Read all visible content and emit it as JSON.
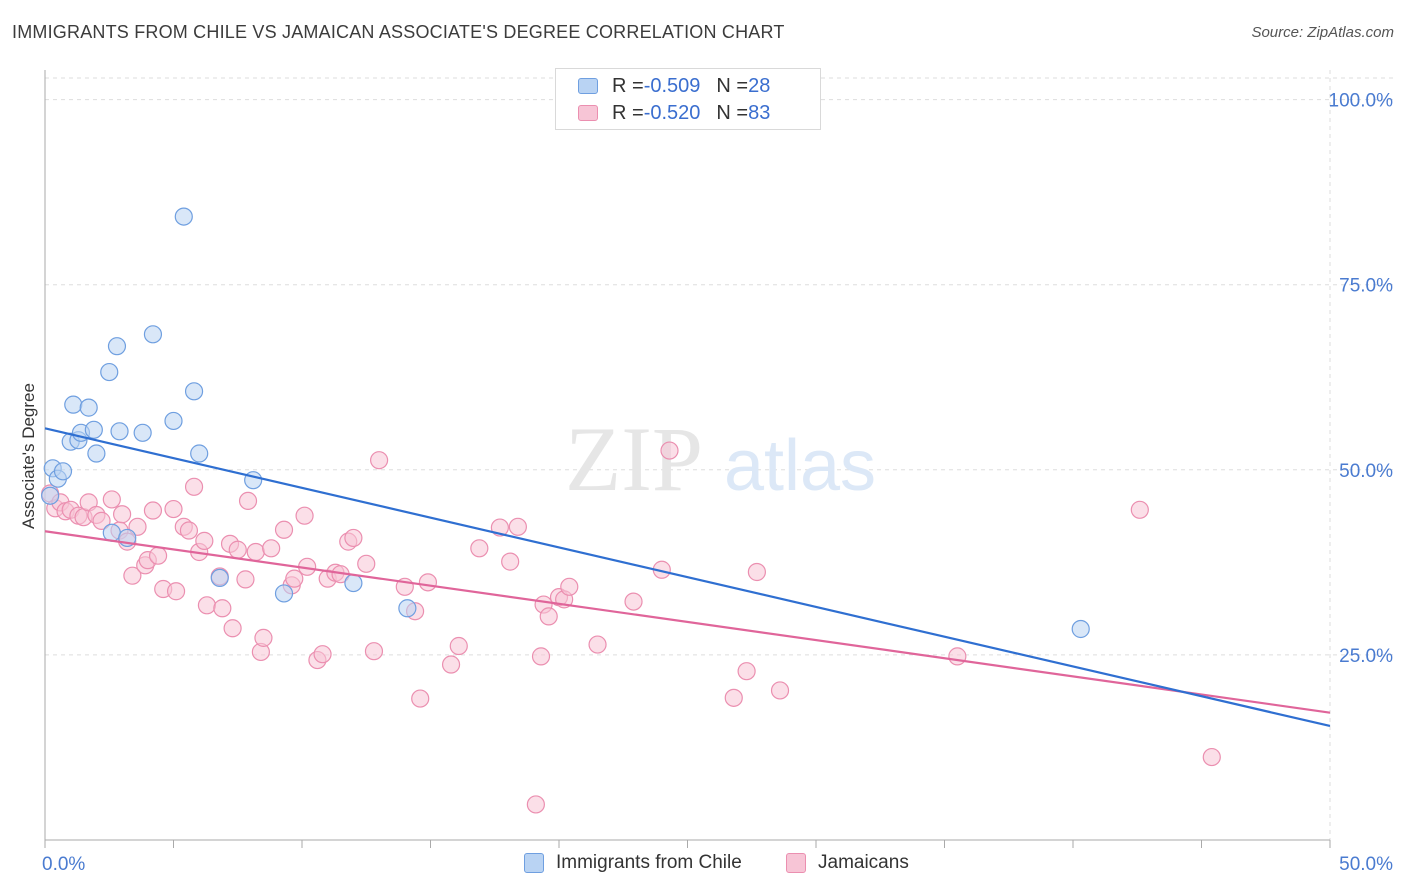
{
  "title": "IMMIGRANTS FROM CHILE VS JAMAICAN ASSOCIATE'S DEGREE CORRELATION CHART",
  "source": "Source: ZipAtlas.com",
  "watermark": {
    "zip": "ZIP",
    "atlas": "atlas"
  },
  "legend": {
    "r_label": "R = ",
    "n_label": "N = ",
    "rows": [
      {
        "r": "-0.509",
        "n": "28"
      },
      {
        "r": "-0.520",
        "n": "83"
      }
    ]
  },
  "colors": {
    "chile_fill": "#b9d3f3",
    "chile_stroke": "#6f9fe0",
    "chile_line": "#2f6fd1",
    "jam_fill": "#f7c5d6",
    "jam_stroke": "#eb8fb0",
    "jam_line": "#e0659a",
    "tick_label": "#4a7bd0",
    "grid": "#dddddd"
  },
  "chart_data": {
    "type": "scatter",
    "title": "IMMIGRANTS FROM CHILE VS JAMAICAN ASSOCIATE'S DEGREE CORRELATION CHART",
    "xlabel": "",
    "ylabel": "Associate's Degree",
    "xlim": [
      0,
      50
    ],
    "ylim": [
      0,
      104
    ],
    "x_tick_labels": [
      "0.0%",
      "50.0%"
    ],
    "y_ticks": [
      25,
      50,
      75,
      100
    ],
    "y_tick_labels": [
      "25.0%",
      "50.0%",
      "75.0%",
      "100.0%"
    ],
    "grid": true,
    "legend_placement": "top-center",
    "series": [
      {
        "name": "Immigrants from Chile",
        "trend": {
          "x": [
            0,
            50
          ],
          "y": [
            55.6,
            15.4
          ]
        },
        "points": [
          [
            0.2,
            46.5
          ],
          [
            0.3,
            50.2
          ],
          [
            0.5,
            48.8
          ],
          [
            0.7,
            49.8
          ],
          [
            1.0,
            53.8
          ],
          [
            1.1,
            58.8
          ],
          [
            1.3,
            54.0
          ],
          [
            1.4,
            55.0
          ],
          [
            1.7,
            58.4
          ],
          [
            1.9,
            55.4
          ],
          [
            2.0,
            52.2
          ],
          [
            2.5,
            63.2
          ],
          [
            2.6,
            41.5
          ],
          [
            2.8,
            66.7
          ],
          [
            2.9,
            55.2
          ],
          [
            3.2,
            40.8
          ],
          [
            3.8,
            55.0
          ],
          [
            4.2,
            68.3
          ],
          [
            5.0,
            56.6
          ],
          [
            5.4,
            84.2
          ],
          [
            5.8,
            60.6
          ],
          [
            6.0,
            52.2
          ],
          [
            6.8,
            35.4
          ],
          [
            8.1,
            48.6
          ],
          [
            9.3,
            33.3
          ],
          [
            12.0,
            34.7
          ],
          [
            14.1,
            31.3
          ],
          [
            40.3,
            28.5
          ]
        ]
      },
      {
        "name": "Jamaicans",
        "trend": {
          "x": [
            0,
            50
          ],
          "y": [
            41.7,
            17.2
          ]
        },
        "points": [
          [
            0.2,
            46.8
          ],
          [
            0.4,
            44.8
          ],
          [
            0.6,
            45.6
          ],
          [
            0.8,
            44.4
          ],
          [
            1.0,
            44.6
          ],
          [
            1.3,
            43.8
          ],
          [
            1.5,
            43.6
          ],
          [
            1.7,
            45.6
          ],
          [
            2.0,
            43.9
          ],
          [
            2.2,
            43.1
          ],
          [
            2.6,
            46.0
          ],
          [
            2.9,
            41.8
          ],
          [
            3.0,
            44.0
          ],
          [
            3.2,
            40.3
          ],
          [
            3.4,
            35.7
          ],
          [
            3.6,
            42.3
          ],
          [
            3.9,
            37.1
          ],
          [
            4.0,
            37.8
          ],
          [
            4.2,
            44.5
          ],
          [
            4.4,
            38.4
          ],
          [
            4.6,
            33.9
          ],
          [
            5.0,
            44.7
          ],
          [
            5.1,
            33.6
          ],
          [
            5.4,
            42.3
          ],
          [
            5.6,
            41.8
          ],
          [
            5.8,
            47.7
          ],
          [
            6.0,
            38.9
          ],
          [
            6.2,
            40.4
          ],
          [
            6.3,
            31.7
          ],
          [
            6.8,
            35.6
          ],
          [
            6.9,
            31.3
          ],
          [
            7.2,
            40.0
          ],
          [
            7.3,
            28.6
          ],
          [
            7.5,
            39.2
          ],
          [
            7.8,
            35.2
          ],
          [
            7.9,
            45.8
          ],
          [
            8.2,
            38.9
          ],
          [
            8.4,
            25.4
          ],
          [
            8.5,
            27.3
          ],
          [
            8.8,
            39.4
          ],
          [
            9.3,
            41.9
          ],
          [
            9.6,
            34.4
          ],
          [
            9.7,
            35.3
          ],
          [
            10.1,
            43.8
          ],
          [
            10.2,
            36.9
          ],
          [
            10.6,
            24.3
          ],
          [
            10.8,
            25.1
          ],
          [
            11.0,
            35.3
          ],
          [
            11.3,
            36.1
          ],
          [
            11.5,
            35.9
          ],
          [
            11.8,
            40.3
          ],
          [
            12.0,
            40.8
          ],
          [
            12.5,
            37.3
          ],
          [
            12.8,
            25.5
          ],
          [
            13.0,
            51.3
          ],
          [
            14.0,
            34.2
          ],
          [
            14.4,
            30.9
          ],
          [
            14.6,
            19.1
          ],
          [
            14.9,
            34.8
          ],
          [
            15.8,
            23.7
          ],
          [
            16.1,
            26.2
          ],
          [
            16.9,
            39.4
          ],
          [
            17.7,
            42.2
          ],
          [
            18.1,
            37.6
          ],
          [
            18.4,
            42.3
          ],
          [
            19.1,
            4.8
          ],
          [
            19.3,
            24.8
          ],
          [
            19.4,
            31.8
          ],
          [
            19.6,
            30.2
          ],
          [
            20.0,
            32.8
          ],
          [
            20.2,
            32.5
          ],
          [
            20.4,
            34.2
          ],
          [
            21.5,
            26.4
          ],
          [
            22.9,
            32.2
          ],
          [
            24.0,
            36.5
          ],
          [
            24.3,
            52.6
          ],
          [
            26.8,
            19.2
          ],
          [
            27.3,
            22.8
          ],
          [
            27.7,
            36.2
          ],
          [
            28.6,
            20.2
          ],
          [
            35.5,
            24.8
          ],
          [
            42.6,
            44.6
          ],
          [
            45.4,
            11.2
          ]
        ]
      }
    ]
  }
}
